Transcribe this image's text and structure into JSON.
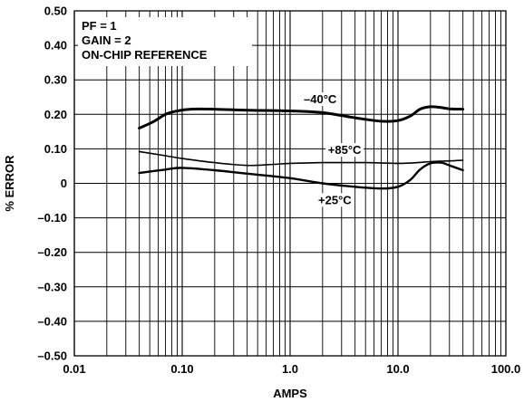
{
  "chart_data": {
    "type": "line",
    "xlabel": "AMPS",
    "ylabel": "% ERROR",
    "x_scale": "log",
    "xlim": [
      0.01,
      100
    ],
    "ylim": [
      -0.5,
      0.5
    ],
    "grid": true,
    "x_ticks": [
      {
        "value": 0.01,
        "label": "0.01"
      },
      {
        "value": 0.1,
        "label": "0.10"
      },
      {
        "value": 1,
        "label": "1.0"
      },
      {
        "value": 10,
        "label": "10.0"
      },
      {
        "value": 100,
        "label": "100.0"
      }
    ],
    "y_ticks": [
      {
        "value": 0.5,
        "label": "0.50"
      },
      {
        "value": 0.4,
        "label": "0.40"
      },
      {
        "value": 0.3,
        "label": "0.30"
      },
      {
        "value": 0.2,
        "label": "0.20"
      },
      {
        "value": 0.1,
        "label": "0.10"
      },
      {
        "value": 0.0,
        "label": "0"
      },
      {
        "value": -0.1,
        "label": "–0.10"
      },
      {
        "value": -0.2,
        "label": "–0.20"
      },
      {
        "value": -0.3,
        "label": "–0.30"
      },
      {
        "value": -0.4,
        "label": "–0.40"
      },
      {
        "value": -0.5,
        "label": "–0.50"
      }
    ],
    "annotations": [
      "PF = 1",
      "GAIN = 2",
      "ON-CHIP REFERENCE"
    ],
    "series": [
      {
        "name": "–40°C",
        "stroke_width": 3,
        "label_at": {
          "x": 1.9,
          "y": 0.232
        },
        "points": [
          [
            0.04,
            0.16
          ],
          [
            0.055,
            0.18
          ],
          [
            0.07,
            0.2
          ],
          [
            0.09,
            0.21
          ],
          [
            0.12,
            0.215
          ],
          [
            0.2,
            0.215
          ],
          [
            0.4,
            0.212
          ],
          [
            1,
            0.21
          ],
          [
            2,
            0.205
          ],
          [
            4,
            0.19
          ],
          [
            7,
            0.18
          ],
          [
            10,
            0.182
          ],
          [
            13,
            0.195
          ],
          [
            16,
            0.215
          ],
          [
            20,
            0.222
          ],
          [
            25,
            0.22
          ],
          [
            30,
            0.216
          ],
          [
            40,
            0.215
          ]
        ]
      },
      {
        "name": "+85°C",
        "stroke_width": 1.6,
        "label_at": {
          "x": 3.2,
          "y": 0.085
        },
        "points": [
          [
            0.04,
            0.092
          ],
          [
            0.07,
            0.08
          ],
          [
            0.1,
            0.072
          ],
          [
            0.2,
            0.06
          ],
          [
            0.4,
            0.052
          ],
          [
            0.7,
            0.055
          ],
          [
            1,
            0.058
          ],
          [
            2,
            0.06
          ],
          [
            5,
            0.06
          ],
          [
            10,
            0.058
          ],
          [
            15,
            0.06
          ],
          [
            20,
            0.063
          ],
          [
            30,
            0.065
          ],
          [
            40,
            0.067
          ]
        ]
      },
      {
        "name": "+25°C",
        "stroke_width": 2.4,
        "label_at": {
          "x": 2.6,
          "y": -0.06
        },
        "points": [
          [
            0.04,
            0.03
          ],
          [
            0.07,
            0.04
          ],
          [
            0.1,
            0.045
          ],
          [
            0.2,
            0.038
          ],
          [
            0.4,
            0.028
          ],
          [
            1,
            0.015
          ],
          [
            2,
            0.0
          ],
          [
            4,
            -0.01
          ],
          [
            7,
            -0.015
          ],
          [
            10,
            -0.01
          ],
          [
            13,
            0.01
          ],
          [
            16,
            0.04
          ],
          [
            20,
            0.058
          ],
          [
            25,
            0.06
          ],
          [
            30,
            0.052
          ],
          [
            40,
            0.038
          ]
        ]
      }
    ]
  }
}
